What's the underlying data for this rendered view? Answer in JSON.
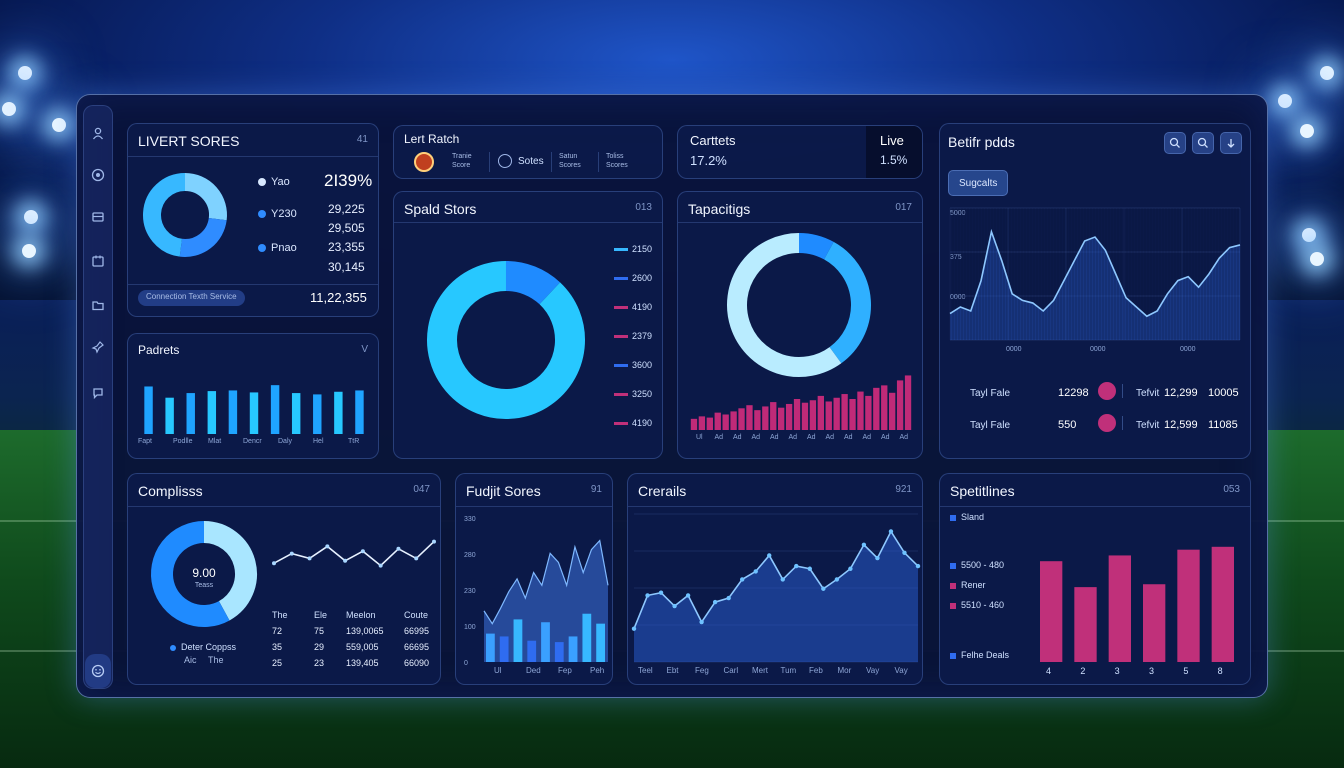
{
  "sidebar": {
    "icons": [
      "user-icon",
      "target-icon",
      "inbox-icon",
      "calendar-icon",
      "folder-icon",
      "pin-icon",
      "chat-icon"
    ],
    "bottom_icon": "smiley-icon"
  },
  "live_scores": {
    "title": "LIVERT SORES",
    "code": "41",
    "legend": [
      {
        "label": "Yao",
        "value": "2I39%",
        "color": "#5fb4ff"
      },
      {
        "label": "Y230",
        "value": "29,225",
        "color": "#2f8cff"
      },
      {
        "label": "",
        "value": "29,505",
        "color": ""
      },
      {
        "label": "Pnao",
        "value": "23,355",
        "color": "#2f8cff"
      },
      {
        "label": "",
        "value": "30,145",
        "color": ""
      }
    ],
    "footer_label": "Connection Texth Service",
    "footer_value": "11,22,355",
    "donut": [
      0.27,
      0.25,
      0.48
    ]
  },
  "last_match": {
    "title": "Lert Ratch",
    "items": [
      "Tranie",
      "Sotes",
      "Satun",
      "Toliss"
    ],
    "sub": [
      "Score",
      "Scores",
      "Scores",
      "Scores"
    ]
  },
  "contests": {
    "title": "Carttets",
    "value": "17.2%",
    "live_label": "Live",
    "live_value": "1.5%"
  },
  "betting_odds": {
    "title": "Betifr pdds",
    "tab": "Sugcalts",
    "y_ticks": [
      "5000",
      "375",
      "0000"
    ],
    "x_ticks": [
      "0000",
      "0000",
      "0000"
    ],
    "series": [
      0.2,
      0.25,
      0.22,
      0.45,
      0.82,
      0.6,
      0.35,
      0.3,
      0.28,
      0.22,
      0.3,
      0.45,
      0.6,
      0.75,
      0.78,
      0.68,
      0.5,
      0.32,
      0.25,
      0.18,
      0.22,
      0.35,
      0.45,
      0.48,
      0.4,
      0.5,
      0.62,
      0.7,
      0.72
    ],
    "icons": [
      "search-icon",
      "zoom-icon",
      "arrow-icon"
    ],
    "rows": [
      {
        "label": "Tayl Fale",
        "value": "12298",
        "label2": "Tefvit",
        "v2": "12,299",
        "v3": "10005"
      },
      {
        "label": "Tayl Fale",
        "value": "550",
        "label2": "Tefvit",
        "v2": "12,599",
        "v3": "11085"
      }
    ]
  },
  "sports_scores": {
    "title": "Spald Stors",
    "code": "013",
    "legend": [
      {
        "value": "2150",
        "color": "#37b8ff"
      },
      {
        "value": "2600",
        "color": "#2f6cf0"
      },
      {
        "value": "4190",
        "color": "#c0307a"
      },
      {
        "value": "2379",
        "color": "#c0307a"
      },
      {
        "value": "3600",
        "color": "#2f6cf0"
      },
      {
        "value": "3250",
        "color": "#c0307a"
      },
      {
        "value": "4190",
        "color": "#c0307a"
      }
    ],
    "donut": [
      0.12,
      0.88
    ]
  },
  "capabilities": {
    "title": "Tapacitigs",
    "code": "017",
    "donut": [
      0.08,
      0.32,
      0.6
    ],
    "bars": [
      0.18,
      0.22,
      0.2,
      0.28,
      0.25,
      0.3,
      0.35,
      0.4,
      0.32,
      0.38,
      0.45,
      0.36,
      0.42,
      0.5,
      0.44,
      0.48,
      0.55,
      0.46,
      0.52,
      0.58,
      0.5,
      0.62,
      0.55,
      0.68,
      0.72,
      0.6,
      0.8,
      0.88
    ],
    "x_ticks": [
      "Ul",
      "Ad",
      "Ad",
      "Ad",
      "Ad",
      "Ad",
      "Ad",
      "Ad",
      "Ad",
      "Ad",
      "Ad",
      "Ad"
    ]
  },
  "products": {
    "title": "Padrets",
    "code": "V",
    "bars": [
      0.72,
      0.55,
      0.62,
      0.65,
      0.66,
      0.63,
      0.74,
      0.62,
      0.6,
      0.64,
      0.66
    ],
    "x_ticks": [
      "Fapt",
      "Podlle",
      "Mlat",
      "Dencr",
      "Daly",
      "Hel",
      "TtR"
    ]
  },
  "compliances": {
    "title": "Complisss",
    "code": "047",
    "center_value": "9.00",
    "center_label": "Teass",
    "legend_label": "Deter Coppss",
    "legend_sub1": "Aic",
    "legend_sub2": "The",
    "line": [
      0.35,
      0.55,
      0.45,
      0.7,
      0.4,
      0.6,
      0.3,
      0.65,
      0.45,
      0.8
    ],
    "table_headers": [
      "The",
      "Ele",
      "Meelon",
      "Coute"
    ],
    "table_rows": [
      [
        "72",
        "75",
        "139,0065",
        "66995"
      ],
      [
        "35",
        "29",
        "559,005",
        "66695"
      ],
      [
        "25",
        "23",
        "139,405",
        "66090"
      ]
    ]
  },
  "budget_scores": {
    "title": "Fudjit Sores",
    "code": "91",
    "y_ticks": [
      "330",
      "280",
      "230",
      "100",
      "0"
    ],
    "x_ticks": [
      "Ul",
      "Ded",
      "Fep",
      "Peh"
    ],
    "area": [
      0.4,
      0.3,
      0.42,
      0.55,
      0.65,
      0.5,
      0.7,
      0.6,
      0.85,
      0.78,
      0.6,
      0.9,
      0.7,
      0.88,
      0.95,
      0.6
    ],
    "bars": [
      0.2,
      0.18,
      0.3,
      0.15,
      0.28,
      0.14,
      0.18,
      0.34,
      0.27
    ],
    "bar_colors": [
      "#3aa0ff",
      "#2f6cf0",
      "#37b8ff",
      "#2f6cf0",
      "#3aa0ff",
      "#2f6cf0",
      "#3aa0ff",
      "#37b8ff",
      "#37b8ff"
    ]
  },
  "credits": {
    "title": "Crerails",
    "code": "921",
    "x_ticks": [
      "Teel",
      "Ebt",
      "Feg",
      "Carl",
      "Mert",
      "Tum",
      "Feb",
      "Mor",
      "Vay",
      "Vay"
    ],
    "line": [
      0.25,
      0.5,
      0.52,
      0.42,
      0.5,
      0.3,
      0.45,
      0.48,
      0.62,
      0.68,
      0.8,
      0.62,
      0.72,
      0.7,
      0.55,
      0.62,
      0.7,
      0.88,
      0.78,
      0.98,
      0.82,
      0.72
    ]
  },
  "sports_timelines": {
    "title": "Spetitlines",
    "code": "053",
    "legend": [
      {
        "label": "Sland",
        "color": "#2f6cf0"
      },
      {
        "label": "5500 - 480",
        "color": "#2f6cf0"
      },
      {
        "label": "Rener",
        "color": "#c0307a"
      },
      {
        "label": "5510 - 460",
        "color": "#c0307a"
      },
      {
        "label": "Felhe Deals",
        "color": "#2f6cf0"
      }
    ],
    "bars": [
      0.7,
      0.52,
      0.74,
      0.54,
      0.78,
      0.8
    ],
    "x_ticks": [
      "4",
      "2",
      "3",
      "3",
      "5",
      "8"
    ]
  }
}
